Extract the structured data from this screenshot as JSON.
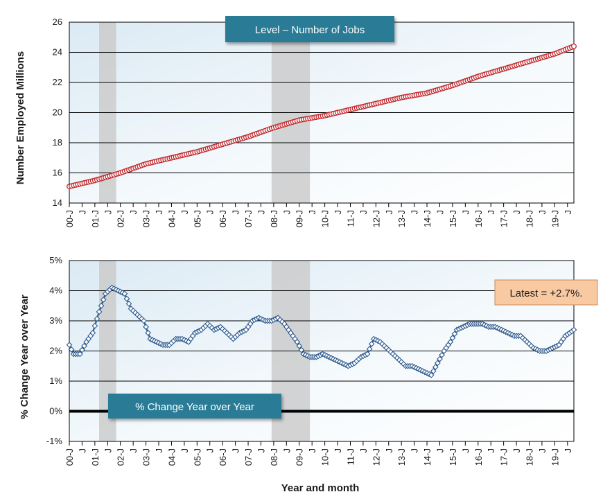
{
  "chart_data": [
    {
      "type": "line",
      "title": "Level – Number of Jobs",
      "ylabel": "Number Employed Millions",
      "xlabel": "",
      "ylim": [
        14,
        26
      ],
      "yticks": [
        "14",
        "16",
        "18",
        "20",
        "22",
        "24",
        "26"
      ],
      "x_start": "2000-01",
      "x_end": "2019-10",
      "x_tick_labels": [
        "00-J",
        "J",
        "01-J",
        "J",
        "02-J",
        "J",
        "03-J",
        "J",
        "04-J",
        "J",
        "05-J",
        "J",
        "06-J",
        "J",
        "07-J",
        "J",
        "08-J",
        "J",
        "09-J",
        "J",
        "10-J",
        "J",
        "11-J",
        "J",
        "12-J",
        "J",
        "13-J",
        "J",
        "14-J",
        "J",
        "15-J",
        "J",
        "16-J",
        "J",
        "17-J",
        "J",
        "18-J",
        "J",
        "19-J",
        "J"
      ],
      "recession_shading": [
        [
          "2001-03",
          "2001-11"
        ],
        [
          "2007-12",
          "2009-06"
        ]
      ],
      "series": [
        {
          "color": "#c0282d",
          "x": [
            "2000-01",
            "2001-01",
            "2002-01",
            "2003-01",
            "2004-01",
            "2005-01",
            "2006-01",
            "2007-01",
            "2008-01",
            "2009-01",
            "2010-01",
            "2011-01",
            "2012-01",
            "2013-01",
            "2014-01",
            "2015-01",
            "2016-01",
            "2017-01",
            "2018-01",
            "2019-01",
            "2019-10"
          ],
          "values": [
            15.1,
            15.5,
            16.0,
            16.6,
            17.0,
            17.4,
            17.9,
            18.4,
            19.0,
            19.5,
            19.8,
            20.2,
            20.6,
            21.0,
            21.3,
            21.8,
            22.4,
            22.9,
            23.4,
            23.9,
            24.4
          ]
        }
      ]
    },
    {
      "type": "line",
      "title": "% Change Year over Year",
      "ylabel": "% Change Year over Year",
      "xlabel": "Year and month",
      "ylim": [
        -1,
        5
      ],
      "yticks": [
        "-1%",
        "0%",
        "1%",
        "2%",
        "3%",
        "4%",
        "5%"
      ],
      "x_start": "2000-01",
      "x_end": "2019-10",
      "x_tick_labels": [
        "00-J",
        "J",
        "01-J",
        "J",
        "02-J",
        "J",
        "03-J",
        "J",
        "04-J",
        "J",
        "05-J",
        "J",
        "06-J",
        "J",
        "07-J",
        "J",
        "08-J",
        "J",
        "09-J",
        "J",
        "10-J",
        "J",
        "11-J",
        "J",
        "12-J",
        "J",
        "13-J",
        "J",
        "14-J",
        "J",
        "15-J",
        "J",
        "16-J",
        "J",
        "17-J",
        "J",
        "18-J",
        "J",
        "19-J",
        "J"
      ],
      "recession_shading": [
        [
          "2001-03",
          "2001-11"
        ],
        [
          "2007-12",
          "2009-06"
        ]
      ],
      "annotation": "Latest = +2.7%.",
      "series": [
        {
          "color": "#2e5a8c",
          "x": [
            "2000-01",
            "2000-03",
            "2000-06",
            "2000-09",
            "2000-12",
            "2001-03",
            "2001-06",
            "2001-09",
            "2001-12",
            "2002-03",
            "2002-06",
            "2002-09",
            "2002-12",
            "2003-03",
            "2003-06",
            "2003-09",
            "2003-12",
            "2004-03",
            "2004-06",
            "2004-09",
            "2004-12",
            "2005-03",
            "2005-06",
            "2005-09",
            "2005-12",
            "2006-03",
            "2006-06",
            "2006-09",
            "2006-12",
            "2007-03",
            "2007-06",
            "2007-09",
            "2007-12",
            "2008-03",
            "2008-06",
            "2008-09",
            "2008-12",
            "2009-03",
            "2009-06",
            "2009-09",
            "2009-12",
            "2010-03",
            "2010-06",
            "2010-09",
            "2010-12",
            "2011-03",
            "2011-06",
            "2011-09",
            "2011-12",
            "2012-03",
            "2012-06",
            "2012-09",
            "2012-12",
            "2013-03",
            "2013-06",
            "2013-09",
            "2013-12",
            "2014-03",
            "2014-06",
            "2014-09",
            "2014-12",
            "2015-03",
            "2015-06",
            "2015-09",
            "2015-12",
            "2016-03",
            "2016-06",
            "2016-09",
            "2016-12",
            "2017-03",
            "2017-06",
            "2017-09",
            "2017-12",
            "2018-03",
            "2018-06",
            "2018-09",
            "2018-12",
            "2019-03",
            "2019-06",
            "2019-10"
          ],
          "values": [
            2.2,
            1.9,
            1.9,
            2.3,
            2.6,
            3.3,
            3.9,
            4.1,
            4.0,
            3.9,
            3.4,
            3.2,
            3.0,
            2.4,
            2.3,
            2.2,
            2.2,
            2.4,
            2.4,
            2.3,
            2.6,
            2.7,
            2.9,
            2.7,
            2.8,
            2.6,
            2.4,
            2.6,
            2.7,
            3.0,
            3.1,
            3.0,
            3.0,
            3.1,
            2.9,
            2.6,
            2.3,
            1.9,
            1.8,
            1.8,
            1.9,
            1.8,
            1.7,
            1.6,
            1.5,
            1.6,
            1.8,
            1.9,
            2.4,
            2.3,
            2.1,
            1.9,
            1.7,
            1.5,
            1.5,
            1.4,
            1.3,
            1.2,
            1.6,
            2.0,
            2.3,
            2.7,
            2.8,
            2.9,
            2.9,
            2.9,
            2.8,
            2.8,
            2.7,
            2.6,
            2.5,
            2.5,
            2.3,
            2.1,
            2.0,
            2.0,
            2.1,
            2.2,
            2.5,
            2.7
          ]
        }
      ]
    }
  ]
}
